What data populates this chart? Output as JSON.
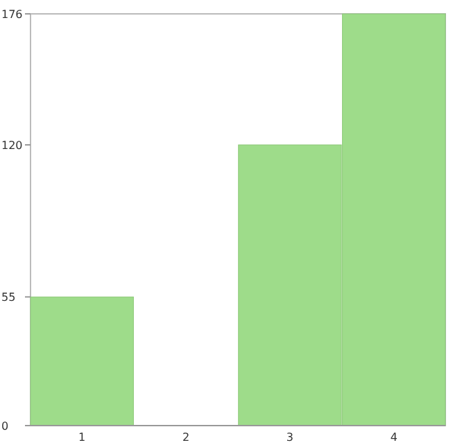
{
  "chart_data": {
    "type": "bar",
    "categories": [
      "1",
      "2",
      "3",
      "4"
    ],
    "values": [
      55,
      0,
      120,
      176
    ],
    "color": "#9edc8a",
    "ylim": [
      0,
      176
    ],
    "yticks": [
      0,
      55,
      120,
      176
    ],
    "grid": false
  }
}
